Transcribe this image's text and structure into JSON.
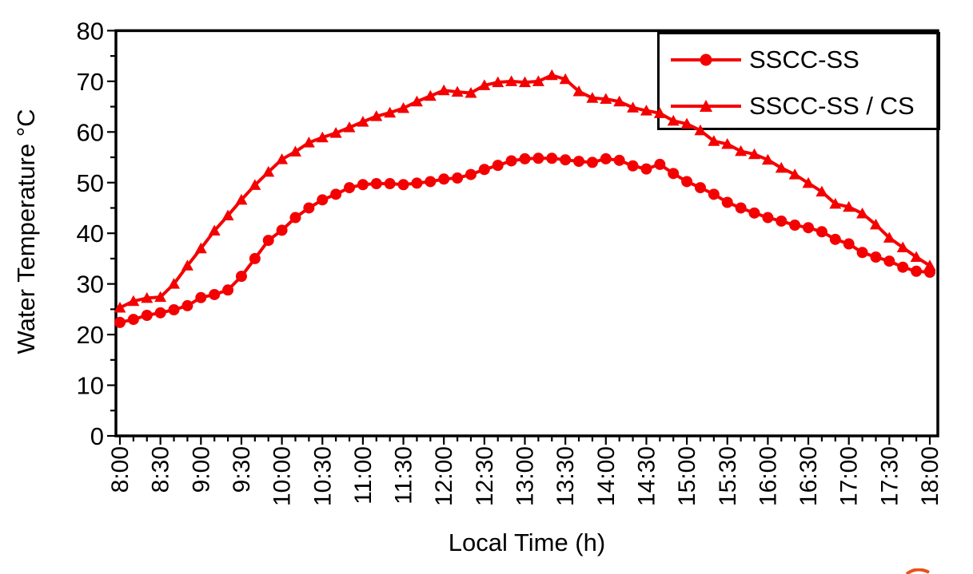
{
  "figure": {
    "background": "#ffffff",
    "frame_color": "#000000",
    "accent_color": "#f40000",
    "corner_mark_color": "#e8521c"
  },
  "chart_data": {
    "type": "line",
    "title": "",
    "xlabel": "Local Time (h)",
    "ylabel": "Water Temperature °C",
    "grid": false,
    "legend_position": "top-right",
    "ylim": [
      0,
      80
    ],
    "y_major_step": 10,
    "y_minor_step": 5,
    "y_tick_labels": [
      "0",
      "10",
      "20",
      "30",
      "40",
      "50",
      "60",
      "70",
      "80"
    ],
    "x_major_tick_labels": [
      "8:00",
      "8:30",
      "9:00",
      "9:30",
      "10:00",
      "10:30",
      "11:00",
      "11:30",
      "12:00",
      "12:30",
      "13:00",
      "13:30",
      "14:00",
      "14:30",
      "15:00",
      "15:30",
      "16:00",
      "16:30",
      "17:00",
      "17:30",
      "18:00"
    ],
    "x_minor_interval_minutes": 10,
    "x": [
      "8:00",
      "8:10",
      "8:20",
      "8:30",
      "8:40",
      "8:50",
      "9:00",
      "9:10",
      "9:20",
      "9:30",
      "9:40",
      "9:50",
      "10:00",
      "10:10",
      "10:20",
      "10:30",
      "10:40",
      "10:50",
      "11:00",
      "11:10",
      "11:20",
      "11:30",
      "11:40",
      "11:50",
      "12:00",
      "12:10",
      "12:20",
      "12:30",
      "12:40",
      "12:50",
      "13:00",
      "13:10",
      "13:20",
      "13:30",
      "13:40",
      "13:50",
      "14:00",
      "14:10",
      "14:20",
      "14:30",
      "14:40",
      "14:50",
      "15:00",
      "15:10",
      "15:20",
      "15:30",
      "15:40",
      "15:50",
      "16:00",
      "16:10",
      "16:20",
      "16:30",
      "16:40",
      "16:50",
      "17:00",
      "17:10",
      "17:20",
      "17:30",
      "17:40",
      "17:50",
      "18:00"
    ],
    "series": [
      {
        "name": "SSCC-SS",
        "marker": "circle",
        "color": "#f40000",
        "values": [
          22.4,
          23.0,
          23.8,
          24.3,
          24.9,
          25.7,
          27.3,
          27.9,
          28.8,
          31.5,
          35.0,
          38.6,
          40.6,
          43.1,
          45.0,
          46.6,
          47.7,
          49.0,
          49.6,
          49.8,
          49.8,
          49.6,
          49.9,
          50.2,
          50.7,
          50.9,
          51.6,
          52.6,
          53.4,
          54.3,
          54.7,
          54.8,
          54.8,
          54.5,
          54.2,
          54.0,
          54.7,
          54.4,
          53.3,
          52.7,
          53.6,
          51.8,
          50.2,
          49.0,
          47.7,
          46.1,
          45.0,
          44.0,
          43.1,
          42.4,
          41.6,
          41.1,
          40.3,
          38.8,
          37.9,
          36.2,
          35.3,
          34.5,
          33.3,
          32.5,
          32.3
        ]
      },
      {
        "name": "SSCC-SS / CS",
        "marker": "triangle",
        "color": "#f40000",
        "values": [
          25.3,
          26.6,
          27.2,
          27.4,
          30.0,
          33.6,
          37.0,
          40.5,
          43.5,
          46.6,
          49.5,
          52.1,
          54.6,
          56.1,
          57.9,
          58.9,
          59.8,
          60.9,
          62.0,
          63.1,
          63.8,
          64.7,
          66.0,
          67.1,
          68.2,
          67.9,
          67.7,
          69.2,
          69.8,
          70.0,
          69.8,
          70.0,
          71.2,
          70.4,
          68.0,
          66.7,
          66.5,
          66.0,
          64.8,
          64.2,
          63.7,
          62.2,
          61.6,
          60.3,
          58.2,
          57.6,
          56.2,
          55.6,
          54.5,
          52.9,
          51.6,
          49.9,
          48.2,
          45.8,
          45.2,
          43.9,
          41.7,
          39.1,
          37.2,
          35.3,
          33.6
        ]
      }
    ]
  }
}
